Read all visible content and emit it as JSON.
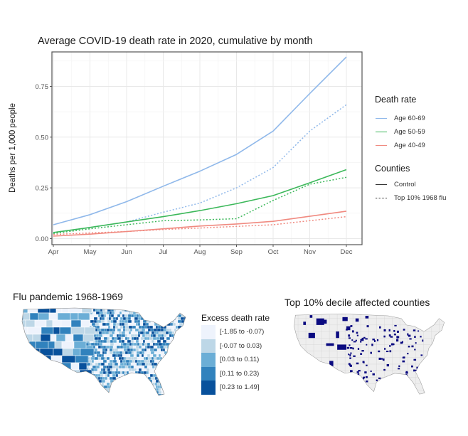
{
  "chart_data": [
    {
      "type": "line",
      "title": "Average COVID-19 death rate in 2020, cumulative by month",
      "xlabel": "",
      "ylabel": "Deaths per 1,000 people",
      "x": [
        "Apr",
        "May",
        "Jun",
        "Jul",
        "Aug",
        "Sep",
        "Oct",
        "Nov",
        "Dec"
      ],
      "yticks": [
        "0.00",
        "0.25",
        "0.50",
        "0.75"
      ],
      "ylim": [
        -0.03,
        0.92
      ],
      "grid": true,
      "legend_placement": "right",
      "legends": [
        {
          "title": "Death rate",
          "entries": [
            {
              "label": "Age 60-69",
              "color": "#8fb8ea"
            },
            {
              "label": "Age 50-59",
              "color": "#3cb85a"
            },
            {
              "label": "Age 40-49",
              "color": "#f08a80"
            }
          ]
        },
        {
          "title": "Counties",
          "entries": [
            {
              "label": "Control",
              "dash": "solid"
            },
            {
              "label": "Top 10% 1968 flu",
              "dash": "dotted"
            }
          ]
        }
      ],
      "series": [
        {
          "name": "Age 60-69 Control",
          "group": "Age 60-69",
          "dash": "solid",
          "color": "#8fb8ea",
          "values": [
            0.068,
            0.118,
            0.182,
            0.258,
            0.332,
            0.415,
            0.53,
            0.715,
            0.895
          ]
        },
        {
          "name": "Age 60-69 Top 10% 1968 flu",
          "group": "Age 60-69",
          "dash": "dotted",
          "color": "#8fb8ea",
          "values": [
            0.03,
            0.055,
            0.082,
            0.13,
            0.175,
            0.25,
            0.35,
            0.53,
            0.66
          ]
        },
        {
          "name": "Age 50-59 Control",
          "group": "Age 50-59",
          "dash": "solid",
          "color": "#3cb85a",
          "values": [
            0.03,
            0.055,
            0.082,
            0.108,
            0.138,
            0.172,
            0.212,
            0.275,
            0.34
          ]
        },
        {
          "name": "Age 50-59 Top 10% 1968 flu",
          "group": "Age 50-59",
          "dash": "dotted",
          "color": "#3cb85a",
          "values": [
            0.025,
            0.048,
            0.068,
            0.088,
            0.092,
            0.098,
            0.188,
            0.268,
            0.302
          ]
        },
        {
          "name": "Age 40-49 Control",
          "group": "Age 40-49",
          "dash": "solid",
          "color": "#f08a80",
          "values": [
            0.012,
            0.022,
            0.035,
            0.048,
            0.062,
            0.072,
            0.085,
            0.11,
            0.135
          ]
        },
        {
          "name": "Age 40-49 Top 10% 1968 flu",
          "group": "Age 40-49",
          "dash": "dotted",
          "color": "#f08a80",
          "values": [
            0.02,
            0.028,
            0.035,
            0.045,
            0.052,
            0.06,
            0.068,
            0.088,
            0.108
          ]
        }
      ]
    },
    {
      "type": "heatmap",
      "title": "Flu pandemic 1968-1969",
      "legend_title": "Excess death rate",
      "bins": [
        {
          "label": "[-1.85 to -0.07)",
          "color": "#eef3fc"
        },
        {
          "label": "[-0.07 to 0.03)",
          "color": "#bdd7e7"
        },
        {
          "label": "[0.03 to 0.11)",
          "color": "#6baed6"
        },
        {
          "label": "[0.11 to 0.23)",
          "color": "#3182bd"
        },
        {
          "label": "[0.23 to 1.49]",
          "color": "#08519c"
        }
      ]
    },
    {
      "type": "heatmap",
      "title": "Top 10% decile affected counties",
      "highlight_color": "#0a0a80",
      "base_color": "#eeeeee"
    }
  ]
}
